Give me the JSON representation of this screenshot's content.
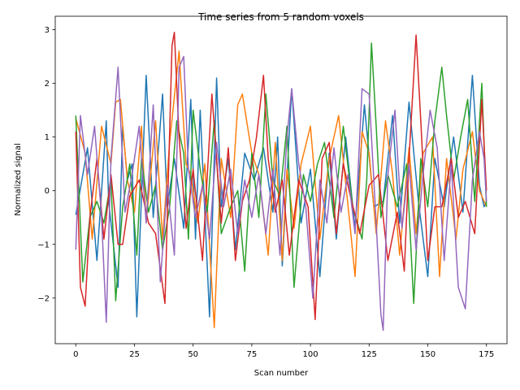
{
  "chart_data": {
    "type": "line",
    "title": "Time series from 5 random voxels",
    "xlabel": "Scan number",
    "ylabel": "Normalized signal",
    "xlim": [
      -8.75,
      183.75
    ],
    "ylim": [
      -2.85,
      3.25
    ],
    "xticks": [
      0,
      25,
      50,
      75,
      100,
      125,
      150,
      175
    ],
    "yticks": [
      -2,
      -1,
      0,
      1,
      2,
      3
    ],
    "grid": false,
    "legend": "none",
    "series": [
      {
        "color": "#1f77b4",
        "x": [
          0,
          5,
          9,
          13,
          14,
          18,
          20,
          22,
          24,
          26,
          30,
          33,
          37,
          39,
          42,
          46,
          49,
          51,
          53,
          57,
          60,
          62,
          65,
          68,
          72,
          76,
          80,
          84,
          86,
          88,
          92,
          96,
          100,
          104,
          108,
          111,
          115,
          119,
          123,
          127,
          131,
          135,
          138,
          142,
          146,
          150,
          153,
          157,
          161,
          165,
          169,
          172,
          174,
          175
        ],
        "y": [
          -0.45,
          0.8,
          -1.3,
          1.3,
          -0.2,
          -1.8,
          1.2,
          0.2,
          0.5,
          -2.35,
          2.15,
          -0.5,
          1.8,
          -0.3,
          0.6,
          -0.7,
          1.7,
          -0.9,
          1.5,
          -2.35,
          2.1,
          -0.3,
          0.6,
          -1.1,
          0.7,
          0.2,
          0.8,
          -0.4,
          1.0,
          -1.4,
          1.9,
          -0.6,
          0.4,
          -1.6,
          0.7,
          -0.9,
          1.0,
          -0.7,
          1.6,
          -0.3,
          -0.2,
          1.4,
          -0.6,
          1.65,
          -0.2,
          -1.6,
          0.6,
          -0.3,
          1.0,
          -0.4,
          2.15,
          0.1,
          -0.3,
          -0.2
        ]
      },
      {
        "color": "#ff7f0e",
        "x": [
          0,
          4,
          7,
          11,
          15,
          17,
          19,
          22,
          25,
          28,
          30,
          34,
          37,
          40,
          44,
          47,
          49,
          52,
          55,
          59,
          62,
          66,
          69,
          71,
          75,
          78,
          82,
          85,
          88,
          90,
          93,
          96,
          100,
          104,
          108,
          112,
          117,
          119,
          122,
          125,
          128,
          132,
          135,
          138,
          142,
          145,
          148,
          152,
          155,
          158,
          162,
          165,
          169,
          172,
          175
        ],
        "y": [
          1.35,
          0.7,
          -0.9,
          1.2,
          0.5,
          1.65,
          1.7,
          0.2,
          -0.4,
          1.2,
          -0.6,
          1.3,
          -0.9,
          0.9,
          2.6,
          0.5,
          0.3,
          -0.6,
          0.5,
          -2.55,
          0.6,
          -0.5,
          1.6,
          1.8,
          0.7,
          0.3,
          -1.2,
          0.9,
          -1.3,
          0.4,
          -0.7,
          0.5,
          1.2,
          -0.9,
          0.6,
          1.4,
          -0.7,
          -1.6,
          1.1,
          0.7,
          -0.8,
          1.3,
          0.3,
          -1.2,
          0.8,
          -0.8,
          0.7,
          1.0,
          -1.6,
          0.6,
          -0.9,
          0.4,
          1.1,
          0.0,
          -0.3
        ]
      },
      {
        "color": "#2ca02c",
        "x": [
          0,
          3,
          6,
          9,
          12,
          15,
          17,
          20,
          23,
          26,
          28,
          31,
          34,
          37,
          40,
          43,
          46,
          48,
          50,
          53,
          56,
          59,
          62,
          66,
          69,
          72,
          75,
          78,
          81,
          84,
          87,
          90,
          93,
          97,
          100,
          103,
          106,
          110,
          114,
          118,
          122,
          124,
          126,
          128,
          130,
          133,
          137,
          141,
          144,
          147,
          150,
          153,
          156,
          158,
          161,
          164,
          167,
          170,
          173,
          175
        ],
        "y": [
          1.4,
          -1.7,
          -0.5,
          -0.2,
          -0.6,
          0.2,
          -2.05,
          -0.3,
          0.5,
          -1.2,
          0.6,
          -0.4,
          0.1,
          -1.1,
          -0.3,
          1.3,
          0.7,
          -0.9,
          1.5,
          0.4,
          -0.4,
          1.3,
          -0.8,
          -0.3,
          0.0,
          -1.5,
          0.7,
          -0.5,
          1.8,
          0.2,
          -0.1,
          1.2,
          -1.8,
          0.3,
          -0.2,
          0.5,
          0.9,
          -0.5,
          1.2,
          -0.3,
          -0.9,
          0.2,
          2.75,
          1.2,
          -0.5,
          0.3,
          -0.3,
          0.5,
          -2.1,
          0.6,
          -0.3,
          1.3,
          2.3,
          1.4,
          0.2,
          1.0,
          1.7,
          -0.2,
          2.0,
          -0.3
        ]
      },
      {
        "color": "#d62728",
        "x": [
          0,
          2,
          4,
          6,
          9,
          12,
          15,
          18,
          20,
          23,
          27,
          31,
          34,
          38,
          41,
          42,
          44,
          47,
          50,
          54,
          58,
          62,
          65,
          68,
          71,
          74,
          77,
          80,
          82,
          85,
          88,
          91,
          95,
          99,
          102,
          105,
          108,
          111,
          114,
          117,
          121,
          125,
          129,
          133,
          137,
          140,
          142,
          145,
          147,
          150,
          153,
          156,
          160,
          163,
          166,
          170,
          173,
          175
        ],
        "y": [
          1.1,
          -1.8,
          -2.15,
          -0.5,
          0.6,
          -0.9,
          0.3,
          -1.0,
          -1.0,
          -0.1,
          0.2,
          -0.6,
          -0.8,
          -2.1,
          2.7,
          2.95,
          1.0,
          -0.7,
          0.4,
          -1.3,
          1.8,
          -0.6,
          0.8,
          -1.3,
          -0.2,
          0.2,
          1.0,
          2.15,
          0.6,
          -0.4,
          0.2,
          -1.2,
          0.2,
          -0.3,
          -2.4,
          0.6,
          0.9,
          -0.8,
          0.5,
          -0.1,
          -0.8,
          0.1,
          0.3,
          -1.3,
          -0.4,
          -1.5,
          0.6,
          2.9,
          1.3,
          -1.3,
          -0.3,
          -0.3,
          0.6,
          -0.5,
          -0.2,
          -0.8,
          1.7,
          0.0
        ]
      },
      {
        "color": "#9467bd",
        "x": [
          0,
          2,
          5,
          8,
          11,
          13,
          15,
          18,
          21,
          24,
          27,
          30,
          33,
          36,
          39,
          42,
          44,
          46,
          48,
          51,
          54,
          57,
          60,
          63,
          66,
          69,
          72,
          75,
          78,
          81,
          84,
          87,
          90,
          92,
          95,
          98,
          101,
          104,
          107,
          110,
          113,
          116,
          119,
          122,
          125,
          128,
          130,
          131,
          133,
          136,
          139,
          142,
          145,
          148,
          151,
          154,
          157,
          160,
          163,
          166,
          169,
          172,
          174,
          175
        ],
        "y": [
          -1.1,
          1.4,
          0.3,
          1.2,
          -0.5,
          -2.45,
          0.6,
          2.3,
          -0.4,
          0.3,
          1.2,
          -0.6,
          1.6,
          -1.7,
          0.1,
          -1.2,
          2.3,
          2.5,
          0.4,
          -0.5,
          0.1,
          -0.9,
          0.9,
          -0.3,
          0.4,
          -0.8,
          0.2,
          -0.5,
          0.3,
          -0.8,
          0.4,
          -1.2,
          1.0,
          1.9,
          0.5,
          -0.3,
          -2.0,
          0.2,
          -0.6,
          0.8,
          -0.4,
          0.3,
          -0.8,
          1.9,
          1.8,
          -0.6,
          -2.3,
          -2.6,
          0.3,
          1.5,
          -0.7,
          0.5,
          -1.1,
          0.3,
          1.5,
          0.8,
          -1.3,
          0.5,
          -1.8,
          -2.2,
          0.2,
          1.1,
          0.6,
          -0.2
        ]
      }
    ]
  }
}
